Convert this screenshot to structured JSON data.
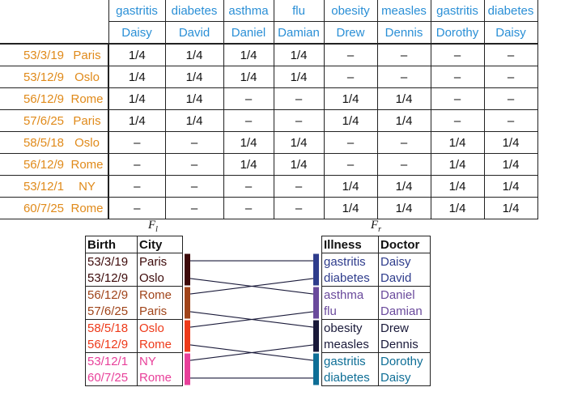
{
  "matrix": {
    "illness_header": [
      "gastritis",
      "diabetes",
      "asthma",
      "flu",
      "obesity",
      "measles",
      "gastritis",
      "diabetes"
    ],
    "doctor_header": [
      "Daisy",
      "David",
      "Daniel",
      "Damian",
      "Drew",
      "Dennis",
      "Dorothy",
      "Daisy"
    ],
    "rows": [
      {
        "birth": "53/3/19",
        "city": "Paris",
        "cells": [
          "1/4",
          "1/4",
          "1/4",
          "1/4",
          "–",
          "–",
          "–",
          "–"
        ]
      },
      {
        "birth": "53/12/9",
        "city": "Oslo",
        "cells": [
          "1/4",
          "1/4",
          "1/4",
          "1/4",
          "–",
          "–",
          "–",
          "–"
        ]
      },
      {
        "birth": "56/12/9",
        "city": "Rome",
        "cells": [
          "1/4",
          "1/4",
          "–",
          "–",
          "1/4",
          "1/4",
          "–",
          "–"
        ]
      },
      {
        "birth": "57/6/25",
        "city": "Paris",
        "cells": [
          "1/4",
          "1/4",
          "–",
          "–",
          "1/4",
          "1/4",
          "–",
          "–"
        ]
      },
      {
        "birth": "58/5/18",
        "city": "Oslo",
        "cells": [
          "–",
          "–",
          "1/4",
          "1/4",
          "–",
          "–",
          "1/4",
          "1/4"
        ]
      },
      {
        "birth": "56/12/9",
        "city": "Rome",
        "cells": [
          "–",
          "–",
          "1/4",
          "1/4",
          "–",
          "–",
          "1/4",
          "1/4"
        ]
      },
      {
        "birth": "53/12/1",
        "city": "NY",
        "cells": [
          "–",
          "–",
          "–",
          "–",
          "1/4",
          "1/4",
          "1/4",
          "1/4"
        ]
      },
      {
        "birth": "60/7/25",
        "city": "Rome",
        "cells": [
          "–",
          "–",
          "–",
          "–",
          "1/4",
          "1/4",
          "1/4",
          "1/4"
        ]
      }
    ]
  },
  "fl": {
    "label": "F",
    "sub": "l",
    "headers": [
      "Birth",
      "City"
    ],
    "rows": [
      {
        "birth": "53/3/19",
        "city": "Paris"
      },
      {
        "birth": "53/12/9",
        "city": "Oslo"
      },
      {
        "birth": "56/12/9",
        "city": "Rome"
      },
      {
        "birth": "57/6/25",
        "city": "Paris"
      },
      {
        "birth": "58/5/18",
        "city": "Oslo"
      },
      {
        "birth": "56/12/9",
        "city": "Rome"
      },
      {
        "birth": "53/12/1",
        "city": "NY"
      },
      {
        "birth": "60/7/25",
        "city": "Rome"
      }
    ],
    "group_colors": [
      "#3d0a0a",
      "#a0441a",
      "#ee3a1a",
      "#e8409a"
    ]
  },
  "fr": {
    "label": "F",
    "sub": "r",
    "headers": [
      "Illness",
      "Doctor"
    ],
    "rows": [
      {
        "illness": "gastritis",
        "doctor": "Daisy"
      },
      {
        "illness": "diabetes",
        "doctor": "David"
      },
      {
        "illness": "asthma",
        "doctor": "Daniel"
      },
      {
        "illness": "flu",
        "doctor": "Damian"
      },
      {
        "illness": "obesity",
        "doctor": "Drew"
      },
      {
        "illness": "measles",
        "doctor": "Dennis"
      },
      {
        "illness": "gastritis",
        "doctor": "Dorothy"
      },
      {
        "illness": "diabetes",
        "doctor": "Daisy"
      }
    ],
    "group_colors": [
      "#2e3c8c",
      "#6a4a9c",
      "#1a1a3a",
      "#0e6e96"
    ]
  },
  "links": [
    [
      0,
      0
    ],
    [
      0,
      1
    ],
    [
      1,
      0
    ],
    [
      1,
      2
    ],
    [
      2,
      1
    ],
    [
      2,
      3
    ],
    [
      3,
      2
    ],
    [
      3,
      3
    ]
  ],
  "colors": {
    "header_blue": "#2a8fd6",
    "orange": "#e08a1a"
  }
}
